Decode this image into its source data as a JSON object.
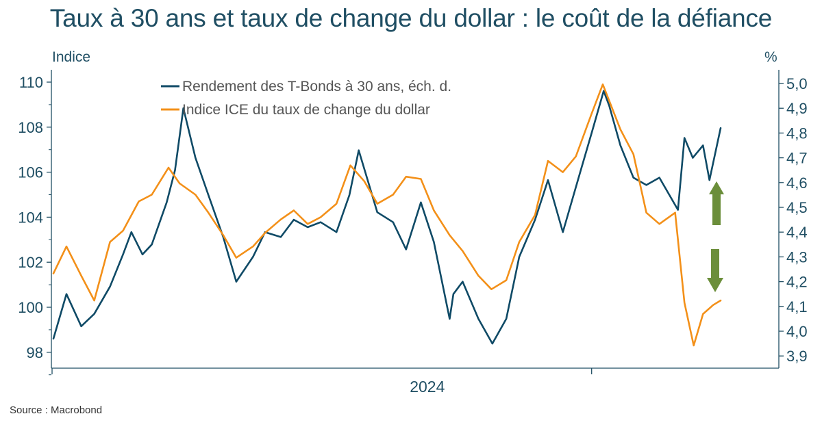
{
  "title": "Taux à 30 ans et taux de change du dollar : le coût de la défiance",
  "source": "Source : Macrobond",
  "colors": {
    "text": "#1f4e63",
    "axis": "#1f4e63",
    "tbond": "#0f4a66",
    "dollar": "#f39019",
    "arrow": "#6b8e3a"
  },
  "chart_data": {
    "type": "line",
    "left_axis": {
      "unit_label": "Indice",
      "ticks": [
        "98",
        "100",
        "102",
        "104",
        "106",
        "108",
        "110"
      ],
      "range": [
        97.5,
        110.5
      ]
    },
    "right_axis": {
      "unit_label": "%",
      "ticks": [
        "3,9",
        "4,0",
        "4,1",
        "4,2",
        "4,3",
        "4,4",
        "4,5",
        "4,6",
        "4,7",
        "4,8",
        "4,9",
        "5,0"
      ],
      "range": [
        3.85,
        5.04
      ]
    },
    "x_axis": {
      "label": "2024",
      "range": [
        "2023-06-01",
        "2025-05-20"
      ]
    },
    "legend_position": "top-left",
    "series": [
      {
        "name": "Rendement des T-Bonds à 30 ans, éch. d.",
        "axis": "right",
        "color": "#0f4a66",
        "x": [
          "2023-06-01",
          "2023-06-15",
          "2023-07-01",
          "2023-07-15",
          "2023-08-01",
          "2023-08-15",
          "2023-08-24",
          "2023-09-05",
          "2023-09-15",
          "2023-10-01",
          "2023-10-10",
          "2023-10-19",
          "2023-11-01",
          "2023-11-15",
          "2023-12-01",
          "2023-12-15",
          "2024-01-02",
          "2024-01-15",
          "2024-02-01",
          "2024-02-15",
          "2024-03-01",
          "2024-03-15",
          "2024-04-01",
          "2024-04-15",
          "2024-04-25",
          "2024-05-15",
          "2024-06-01",
          "2024-06-15",
          "2024-07-01",
          "2024-07-15",
          "2024-08-01",
          "2024-08-05",
          "2024-08-15",
          "2024-09-01",
          "2024-09-16",
          "2024-10-01",
          "2024-10-15",
          "2024-11-01",
          "2024-11-15",
          "2024-12-01",
          "2024-12-18",
          "2025-01-01",
          "2025-01-14",
          "2025-01-20",
          "2025-02-01",
          "2025-02-15",
          "2025-03-01",
          "2025-03-15",
          "2025-04-04",
          "2025-04-11",
          "2025-04-20",
          "2025-05-01",
          "2025-05-08",
          "2025-05-20"
        ],
        "values": [
          3.97,
          4.15,
          4.02,
          4.07,
          4.18,
          4.31,
          4.4,
          4.31,
          4.35,
          4.52,
          4.65,
          4.9,
          4.7,
          4.55,
          4.38,
          4.2,
          4.3,
          4.4,
          4.38,
          4.45,
          4.42,
          4.44,
          4.4,
          4.55,
          4.73,
          4.48,
          4.44,
          4.33,
          4.52,
          4.36,
          4.05,
          4.15,
          4.2,
          4.05,
          3.95,
          4.05,
          4.3,
          4.45,
          4.61,
          4.4,
          4.62,
          4.8,
          4.97,
          4.91,
          4.75,
          4.62,
          4.59,
          4.62,
          4.49,
          4.78,
          4.7,
          4.75,
          4.61,
          4.82
        ]
      },
      {
        "name": "Indice ICE du taux de change du dollar",
        "axis": "left",
        "color": "#f39019",
        "x": [
          "2023-06-01",
          "2023-06-15",
          "2023-07-01",
          "2023-07-15",
          "2023-08-01",
          "2023-08-15",
          "2023-09-01",
          "2023-09-15",
          "2023-10-03",
          "2023-10-15",
          "2023-11-01",
          "2023-11-15",
          "2023-12-01",
          "2023-12-15",
          "2024-01-02",
          "2024-01-15",
          "2024-02-01",
          "2024-02-15",
          "2024-03-01",
          "2024-03-15",
          "2024-04-01",
          "2024-04-16",
          "2024-05-01",
          "2024-05-15",
          "2024-06-01",
          "2024-06-15",
          "2024-07-01",
          "2024-07-15",
          "2024-08-01",
          "2024-08-15",
          "2024-09-01",
          "2024-09-15",
          "2024-10-01",
          "2024-10-15",
          "2024-11-01",
          "2024-11-15",
          "2024-12-01",
          "2024-12-15",
          "2025-01-01",
          "2025-01-13",
          "2025-02-01",
          "2025-02-15",
          "2025-03-01",
          "2025-03-15",
          "2025-04-01",
          "2025-04-11",
          "2025-04-21",
          "2025-05-01",
          "2025-05-12",
          "2025-05-20"
        ],
        "values": [
          101.5,
          102.7,
          101.4,
          100.3,
          102.9,
          103.4,
          104.7,
          105.0,
          106.2,
          105.5,
          105.0,
          104.2,
          103.2,
          102.2,
          102.7,
          103.3,
          103.9,
          104.3,
          103.7,
          104.0,
          104.6,
          106.3,
          105.6,
          104.6,
          105.0,
          105.8,
          105.7,
          104.3,
          103.2,
          102.5,
          101.4,
          100.8,
          101.2,
          102.9,
          104.1,
          106.5,
          106.0,
          106.7,
          108.6,
          109.9,
          107.9,
          106.8,
          104.2,
          103.7,
          104.2,
          100.2,
          98.3,
          99.7,
          100.1,
          100.3
        ]
      }
    ],
    "annotations": [
      {
        "type": "arrow",
        "direction": "up",
        "meaning": "taux à 30 ans en hausse"
      },
      {
        "type": "arrow",
        "direction": "down",
        "meaning": "dollar en baisse"
      }
    ]
  }
}
